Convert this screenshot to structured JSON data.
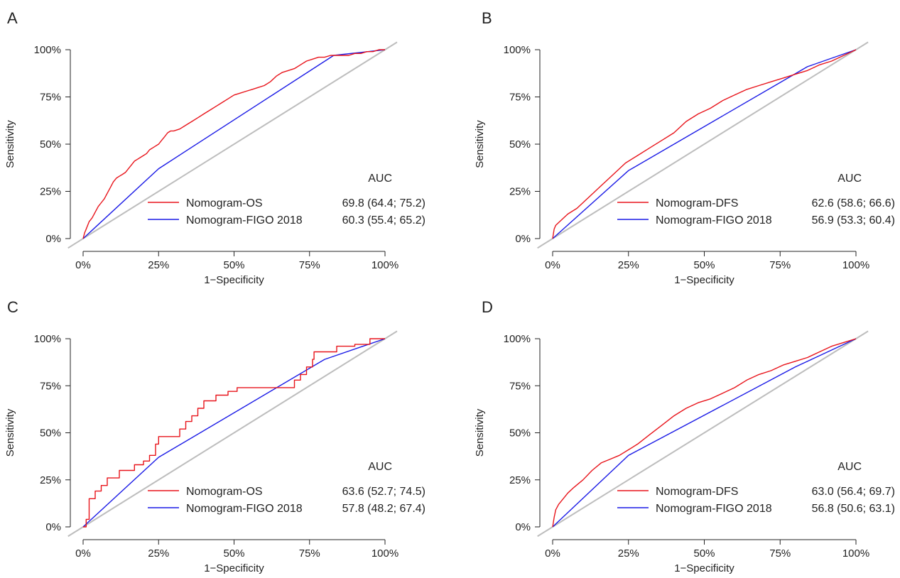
{
  "chart_data": [
    {
      "type": "line",
      "panel": "A",
      "xlabel": "1−Specificity",
      "ylabel": "Sensitivity",
      "xlim": [
        0,
        100
      ],
      "ylim": [
        0,
        100
      ],
      "xticks": [
        "0%",
        "25%",
        "50%",
        "75%",
        "100%"
      ],
      "yticks": [
        "0%",
        "25%",
        "50%",
        "75%",
        "100%"
      ],
      "legend_header": "AUC",
      "series": [
        {
          "name": "Nomogram-OS",
          "auc": "69.8 (64.4; 75.2)",
          "color": "#e8141b",
          "x": [
            0,
            0.5,
            1,
            1.5,
            2,
            3,
            4,
            5,
            6,
            7,
            8,
            9,
            10,
            11,
            12,
            13,
            14,
            15,
            16,
            17,
            18,
            19,
            20,
            21,
            22,
            23,
            24,
            25,
            26,
            27,
            28,
            29,
            30,
            32,
            34,
            36,
            38,
            40,
            42,
            44,
            46,
            48,
            50,
            52,
            54,
            56,
            58,
            60,
            62,
            64,
            66,
            68,
            70,
            72,
            74,
            76,
            78,
            80,
            82,
            85,
            88,
            90,
            92,
            94,
            96,
            98,
            100
          ],
          "y": [
            0,
            3,
            5,
            7,
            9,
            11,
            14,
            17,
            19,
            21,
            24,
            27,
            30,
            32,
            33,
            34,
            35,
            37,
            39,
            41,
            42,
            43,
            44,
            45,
            47,
            48,
            49,
            50,
            52,
            54,
            56,
            57,
            57,
            58,
            60,
            62,
            64,
            66,
            68,
            70,
            72,
            74,
            76,
            77,
            78,
            79,
            80,
            81,
            83,
            86,
            88,
            89,
            90,
            92,
            94,
            95,
            96,
            96,
            97,
            97,
            97,
            98,
            98,
            99,
            99,
            100,
            100
          ]
        },
        {
          "name": "Nomogram-FIGO 2018",
          "auc": "60.3 (55.4; 65.2)",
          "color": "#1a1ae6",
          "x": [
            0,
            25,
            83,
            100
          ],
          "y": [
            0,
            37,
            97,
            100
          ]
        }
      ]
    },
    {
      "type": "line",
      "panel": "B",
      "xlabel": "1−Specificity",
      "ylabel": "Sensitivity",
      "xlim": [
        0,
        100
      ],
      "ylim": [
        0,
        100
      ],
      "xticks": [
        "0%",
        "25%",
        "50%",
        "75%",
        "100%"
      ],
      "yticks": [
        "0%",
        "25%",
        "50%",
        "75%",
        "100%"
      ],
      "legend_header": "AUC",
      "series": [
        {
          "name": "Nomogram-DFS",
          "auc": "62.6 (58.6; 66.6)",
          "color": "#e8141b",
          "x": [
            0,
            0.5,
            1,
            3,
            5,
            8,
            12,
            16,
            20,
            24,
            28,
            32,
            36,
            40,
            44,
            48,
            52,
            56,
            60,
            64,
            68,
            72,
            76,
            80,
            84,
            88,
            92,
            96,
            100
          ],
          "y": [
            0,
            5,
            7,
            10,
            13,
            16,
            22,
            28,
            34,
            40,
            44,
            48,
            52,
            56,
            62,
            66,
            69,
            73,
            76,
            79,
            81,
            83,
            85,
            87,
            89,
            92,
            94,
            97,
            100
          ],
          "note": "approximate"
        },
        {
          "name": "Nomogram-FIGO 2018",
          "auc": "56.9 (53.3; 60.4)",
          "color": "#1a1ae6",
          "x": [
            0,
            25,
            84,
            100
          ],
          "y": [
            0,
            36,
            91,
            100
          ]
        }
      ]
    },
    {
      "type": "line",
      "panel": "C",
      "xlabel": "1−Specificity",
      "ylabel": "Sensitivity",
      "xlim": [
        0,
        100
      ],
      "ylim": [
        0,
        100
      ],
      "xticks": [
        "0%",
        "25%",
        "50%",
        "75%",
        "100%"
      ],
      "yticks": [
        "0%",
        "25%",
        "50%",
        "75%",
        "100%"
      ],
      "legend_header": "AUC",
      "series": [
        {
          "name": "Nomogram-OS",
          "auc": "63.6 (52.7; 74.5)",
          "color": "#e8141b",
          "x": [
            0,
            1,
            1,
            2,
            2,
            4,
            4,
            6,
            6,
            8,
            8,
            12,
            12,
            17,
            17,
            20,
            20,
            22,
            22,
            24,
            24,
            25,
            25,
            32,
            32,
            34,
            34,
            36,
            36,
            38,
            38,
            40,
            40,
            44,
            44,
            48,
            48,
            51,
            51,
            70,
            70,
            72,
            72,
            74,
            74,
            76,
            76,
            76.5,
            76.5,
            78,
            78,
            84,
            84,
            90,
            90,
            95,
            95,
            98,
            98,
            100
          ],
          "y": [
            0,
            0,
            4,
            4,
            15,
            15,
            19,
            19,
            22,
            22,
            26,
            26,
            30,
            30,
            33,
            33,
            35,
            35,
            38,
            38,
            44,
            44,
            48,
            48,
            52,
            52,
            56,
            56,
            59,
            59,
            63,
            63,
            67,
            67,
            70,
            70,
            72,
            72,
            74,
            74,
            78,
            78,
            81,
            81,
            85,
            85,
            89,
            89,
            93,
            93,
            93,
            93,
            96,
            96,
            97,
            97,
            100,
            100,
            100,
            100
          ]
        },
        {
          "name": "Nomogram-FIGO 2018",
          "auc": "57.8 (48.2; 67.4)",
          "color": "#1a1ae6",
          "x": [
            0,
            25,
            80,
            100
          ],
          "y": [
            0,
            37,
            89,
            100
          ]
        }
      ]
    },
    {
      "type": "line",
      "panel": "D",
      "xlabel": "1−Specificity",
      "ylabel": "Sensitivity",
      "xlim": [
        0,
        100
      ],
      "ylim": [
        0,
        100
      ],
      "xticks": [
        "0%",
        "25%",
        "50%",
        "75%",
        "100%"
      ],
      "yticks": [
        "0%",
        "25%",
        "50%",
        "75%",
        "100%"
      ],
      "legend_header": "AUC",
      "series": [
        {
          "name": "Nomogram-DFS",
          "auc": "63.0 (56.4; 69.7)",
          "color": "#e8141b",
          "x": [
            0,
            0.5,
            1,
            2,
            3,
            5,
            7,
            10,
            13,
            16,
            19,
            22,
            25,
            28,
            32,
            36,
            40,
            44,
            48,
            52,
            56,
            60,
            64,
            68,
            72,
            76,
            80,
            84,
            88,
            92,
            96,
            100
          ],
          "y": [
            0,
            5,
            9,
            12,
            14,
            18,
            21,
            25,
            30,
            34,
            36,
            38,
            41,
            44,
            49,
            54,
            59,
            63,
            66,
            68,
            71,
            74,
            78,
            81,
            83,
            86,
            88,
            90,
            93,
            96,
            98,
            100
          ]
        },
        {
          "name": "Nomogram-FIGO 2018",
          "auc": "56.8 (50.6; 63.1)",
          "color": "#1a1ae6",
          "x": [
            0,
            25,
            80,
            100
          ],
          "y": [
            0,
            38,
            85,
            100
          ]
        }
      ]
    }
  ],
  "diag_color": "#bdbdbd"
}
